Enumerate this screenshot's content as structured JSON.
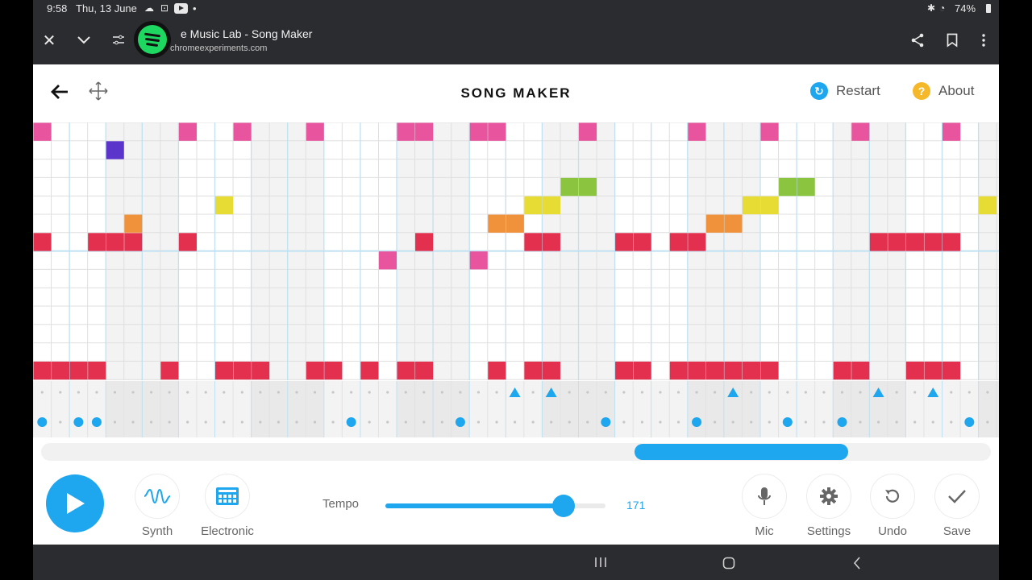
{
  "status_bar": {
    "time": "9:58",
    "date": "Thu, 13 June",
    "battery": "74%",
    "icons": [
      "cloud-icon",
      "screen-record-icon",
      "youtube-icon",
      "dot-icon",
      "bluetooth-icon",
      "wifi-icon",
      "battery-icon"
    ]
  },
  "browser": {
    "tab_title": "e Music Lab - Song Maker",
    "url": "chromeexperiments.com",
    "icons": [
      "close-icon",
      "chevron-down-icon",
      "site-settings-icon",
      "spotify-icon",
      "share-icon",
      "bookmark-icon",
      "more-vert-icon"
    ]
  },
  "header": {
    "title": "SONG MAKER",
    "restart_label": "Restart",
    "about_label": "About",
    "restart_color": "#1ea6ee",
    "about_color": "#f5b829"
  },
  "grid": {
    "columns": 53,
    "melody_rows": 14,
    "colors": {
      "pink": "#e8559e",
      "purple": "#5b34cb",
      "green": "#8bc53f",
      "yellow": "#e7dc33",
      "orange": "#f0913c",
      "red": "#e3304f",
      "accent_line": "#bfe1f1"
    },
    "notes": [
      {
        "col": 0,
        "row": 0,
        "color": "pink"
      },
      {
        "col": 8,
        "row": 0,
        "color": "pink"
      },
      {
        "col": 11,
        "row": 0,
        "color": "pink"
      },
      {
        "col": 15,
        "row": 0,
        "color": "pink"
      },
      {
        "col": 20,
        "row": 0,
        "color": "pink"
      },
      {
        "col": 21,
        "row": 0,
        "color": "pink"
      },
      {
        "col": 24,
        "row": 0,
        "color": "pink"
      },
      {
        "col": 25,
        "row": 0,
        "color": "pink"
      },
      {
        "col": 30,
        "row": 0,
        "color": "pink"
      },
      {
        "col": 36,
        "row": 0,
        "color": "pink"
      },
      {
        "col": 40,
        "row": 0,
        "color": "pink"
      },
      {
        "col": 45,
        "row": 0,
        "color": "pink"
      },
      {
        "col": 50,
        "row": 0,
        "color": "pink"
      },
      {
        "col": 4,
        "row": 1,
        "color": "purple"
      },
      {
        "col": 29,
        "row": 3,
        "color": "green"
      },
      {
        "col": 30,
        "row": 3,
        "color": "green"
      },
      {
        "col": 41,
        "row": 3,
        "color": "green"
      },
      {
        "col": 42,
        "row": 3,
        "color": "green"
      },
      {
        "col": 10,
        "row": 4,
        "color": "yellow"
      },
      {
        "col": 27,
        "row": 4,
        "color": "yellow"
      },
      {
        "col": 28,
        "row": 4,
        "color": "yellow"
      },
      {
        "col": 39,
        "row": 4,
        "color": "yellow"
      },
      {
        "col": 40,
        "row": 4,
        "color": "yellow"
      },
      {
        "col": 52,
        "row": 4,
        "color": "yellow"
      },
      {
        "col": 5,
        "row": 5,
        "color": "orange"
      },
      {
        "col": 25,
        "row": 5,
        "color": "orange"
      },
      {
        "col": 26,
        "row": 5,
        "color": "orange"
      },
      {
        "col": 37,
        "row": 5,
        "color": "orange"
      },
      {
        "col": 38,
        "row": 5,
        "color": "orange"
      },
      {
        "col": 0,
        "row": 6,
        "color": "red"
      },
      {
        "col": 3,
        "row": 6,
        "color": "red"
      },
      {
        "col": 4,
        "row": 6,
        "color": "red"
      },
      {
        "col": 5,
        "row": 6,
        "color": "red"
      },
      {
        "col": 8,
        "row": 6,
        "color": "red"
      },
      {
        "col": 21,
        "row": 6,
        "color": "red"
      },
      {
        "col": 27,
        "row": 6,
        "color": "red"
      },
      {
        "col": 28,
        "row": 6,
        "color": "red"
      },
      {
        "col": 32,
        "row": 6,
        "color": "red"
      },
      {
        "col": 33,
        "row": 6,
        "color": "red"
      },
      {
        "col": 35,
        "row": 6,
        "color": "red"
      },
      {
        "col": 36,
        "row": 6,
        "color": "red"
      },
      {
        "col": 46,
        "row": 6,
        "color": "red"
      },
      {
        "col": 47,
        "row": 6,
        "color": "red"
      },
      {
        "col": 48,
        "row": 6,
        "color": "red"
      },
      {
        "col": 49,
        "row": 6,
        "color": "red"
      },
      {
        "col": 50,
        "row": 6,
        "color": "red"
      },
      {
        "col": 19,
        "row": 7,
        "color": "pink"
      },
      {
        "col": 24,
        "row": 7,
        "color": "pink"
      },
      {
        "col": 0,
        "row": 13,
        "color": "red"
      },
      {
        "col": 1,
        "row": 13,
        "color": "red"
      },
      {
        "col": 2,
        "row": 13,
        "color": "red"
      },
      {
        "col": 3,
        "row": 13,
        "color": "red"
      },
      {
        "col": 7,
        "row": 13,
        "color": "red"
      },
      {
        "col": 10,
        "row": 13,
        "color": "red"
      },
      {
        "col": 11,
        "row": 13,
        "color": "red"
      },
      {
        "col": 12,
        "row": 13,
        "color": "red"
      },
      {
        "col": 15,
        "row": 13,
        "color": "red"
      },
      {
        "col": 16,
        "row": 13,
        "color": "red"
      },
      {
        "col": 18,
        "row": 13,
        "color": "red"
      },
      {
        "col": 20,
        "row": 13,
        "color": "red"
      },
      {
        "col": 21,
        "row": 13,
        "color": "red"
      },
      {
        "col": 25,
        "row": 13,
        "color": "red"
      },
      {
        "col": 27,
        "row": 13,
        "color": "red"
      },
      {
        "col": 28,
        "row": 13,
        "color": "red"
      },
      {
        "col": 32,
        "row": 13,
        "color": "red"
      },
      {
        "col": 33,
        "row": 13,
        "color": "red"
      },
      {
        "col": 35,
        "row": 13,
        "color": "red"
      },
      {
        "col": 36,
        "row": 13,
        "color": "red"
      },
      {
        "col": 37,
        "row": 13,
        "color": "red"
      },
      {
        "col": 38,
        "row": 13,
        "color": "red"
      },
      {
        "col": 39,
        "row": 13,
        "color": "red"
      },
      {
        "col": 40,
        "row": 13,
        "color": "red"
      },
      {
        "col": 44,
        "row": 13,
        "color": "red"
      },
      {
        "col": 45,
        "row": 13,
        "color": "red"
      },
      {
        "col": 48,
        "row": 13,
        "color": "red"
      },
      {
        "col": 49,
        "row": 13,
        "color": "red"
      },
      {
        "col": 50,
        "row": 13,
        "color": "red"
      }
    ]
  },
  "rhythm": {
    "color": "#1ea6ee",
    "triangles": [
      26,
      28,
      38,
      46,
      49
    ],
    "dots": [
      0,
      2,
      3,
      17,
      23,
      31,
      36,
      41,
      44,
      51
    ]
  },
  "toolbar": {
    "synth_label": "Synth",
    "electronic_label": "Electronic",
    "tempo_label": "Tempo",
    "tempo_value": "171",
    "tempo_fraction": 0.81,
    "mic_label": "Mic",
    "settings_label": "Settings",
    "undo_label": "Undo",
    "save_label": "Save",
    "accent": "#1ea6ee"
  },
  "scroll": {
    "thumb_start_fraction": 0.625,
    "thumb_length_fraction": 0.225
  },
  "navbar": {
    "icons": [
      "recent-apps-icon",
      "home-icon",
      "back-nav-icon"
    ]
  }
}
